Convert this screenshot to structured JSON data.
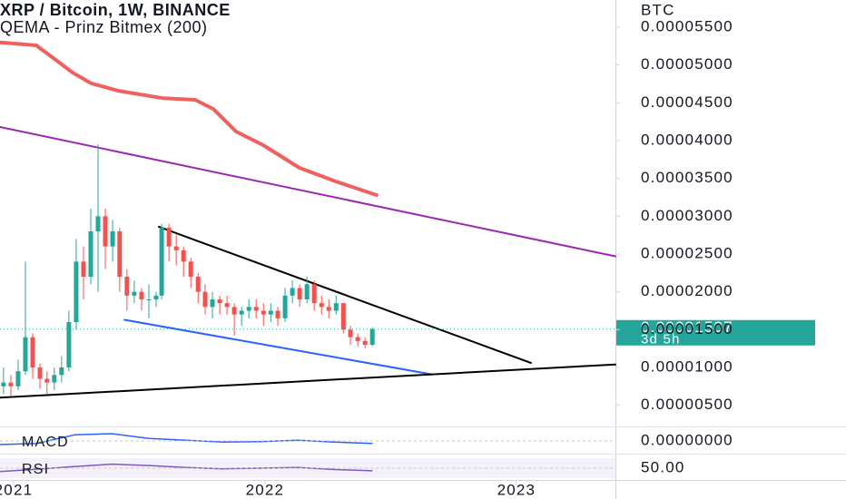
{
  "chart_data": {
    "type": "candlestick",
    "title": "XRP / Bitcoin, 1W, BINANCE",
    "subtitle": "QEMA - Prinz Bitmex (200)",
    "y_axis_label": "BTC",
    "up_color": "#26a69a",
    "down_color": "#ef5350",
    "x": [
      2020.96,
      2020.989,
      2021.018,
      2021.047,
      2021.076,
      2021.105,
      2021.133,
      2021.162,
      2021.191,
      2021.22,
      2021.249,
      2021.278,
      2021.307,
      2021.336,
      2021.365,
      2021.394,
      2021.422,
      2021.451,
      2021.48,
      2021.509,
      2021.538,
      2021.567,
      2021.589,
      2021.618,
      2021.647,
      2021.676,
      2021.705,
      2021.734,
      2021.762,
      2021.791,
      2021.82,
      2021.849,
      2021.878,
      2021.907,
      2021.936,
      2021.965,
      2021.994,
      2022.023,
      2022.051,
      2022.08,
      2022.109,
      2022.138,
      2022.167,
      2022.196,
      2022.225,
      2022.254,
      2022.283,
      2022.312,
      2022.34,
      2022.369,
      2022.398,
      2022.427
    ],
    "open": [
      7.5e-06,
      8e-06,
      7.5e-06,
      9.5e-06,
      1.4e-05,
      1e-05,
      8.5e-06,
      8e-06,
      9e-06,
      1e-05,
      1.6e-05,
      2.4e-05,
      2.2e-05,
      2.8e-05,
      3e-05,
      2.6e-05,
      2.8e-05,
      2.2e-05,
      1.95e-05,
      2e-05,
      1.9e-05,
      1.9e-05,
      1.95e-05,
      2.85e-05,
      2.6e-05,
      2.55e-05,
      2.4e-05,
      2.2e-05,
      2e-05,
      1.8e-05,
      1.9e-05,
      1.85e-05,
      1.8e-05,
      1.7e-05,
      1.75e-05,
      1.8e-05,
      1.75e-05,
      1.7e-05,
      1.75e-05,
      1.65e-05,
      1.95e-05,
      2.05e-05,
      1.9e-05,
      2.1e-05,
      1.85e-05,
      1.8e-05,
      1.75e-05,
      1.85e-05,
      1.5e-05,
      1.4e-05,
      1.35e-05,
      1.3e-05
    ],
    "high": [
      1e-05,
      9e-06,
      1.1e-05,
      2.4e-05,
      1.45e-05,
      1.05e-05,
      9.5e-06,
      1e-05,
      1.15e-05,
      1.75e-05,
      2.7e-05,
      2.6e-05,
      3.1e-05,
      3.95e-05,
      3.1e-05,
      2.95e-05,
      2.85e-05,
      2.3e-05,
      2.15e-05,
      2.05e-05,
      2.1e-05,
      2e-05,
      2.9e-05,
      2.9e-05,
      2.75e-05,
      2.6e-05,
      2.45e-05,
      2.25e-05,
      2.1e-05,
      2e-05,
      1.95e-05,
      1.95e-05,
      1.85e-05,
      1.8e-05,
      1.9e-05,
      1.9e-05,
      1.85e-05,
      1.85e-05,
      1.8e-05,
      2.05e-05,
      2.15e-05,
      2.1e-05,
      2.2e-05,
      2.15e-05,
      1.95e-05,
      1.9e-05,
      1.95e-05,
      1.85e-05,
      1.55e-05,
      1.45e-05,
      1.4e-05,
      1.53e-05
    ],
    "low": [
      6.5e-06,
      6.2e-06,
      7e-06,
      9e-06,
      8.5e-06,
      7.2e-06,
      6.5e-06,
      7e-06,
      8e-06,
      9.5e-06,
      1.5e-05,
      1.9e-05,
      2.1e-05,
      2e-05,
      2.3e-05,
      2.4e-05,
      2e-05,
      1.75e-05,
      1.85e-05,
      1.75e-05,
      1.65e-05,
      1.8e-05,
      1.9e-05,
      2.4e-05,
      2.35e-05,
      2.2e-05,
      2.05e-05,
      1.85e-05,
      1.7e-05,
      1.65e-05,
      1.7e-05,
      1.7e-05,
      1.42e-05,
      1.55e-05,
      1.65e-05,
      1.65e-05,
      1.55e-05,
      1.6e-05,
      1.55e-05,
      1.6e-05,
      1.85e-05,
      1.8e-05,
      1.85e-05,
      1.75e-05,
      1.7e-05,
      1.65e-05,
      1.7e-05,
      1.45e-05,
      1.3e-05,
      1.28e-05,
      1.25e-05,
      1.28e-05
    ],
    "close": [
      8e-06,
      7.5e-06,
      9.5e-06,
      1.4e-05,
      1e-05,
      8.5e-06,
      8e-06,
      9e-06,
      1e-05,
      1.6e-05,
      2.4e-05,
      2.2e-05,
      2.8e-05,
      3e-05,
      2.6e-05,
      2.8e-05,
      2.2e-05,
      1.95e-05,
      2e-05,
      1.9e-05,
      1.9e-05,
      1.95e-05,
      2.85e-05,
      2.6e-05,
      2.55e-05,
      2.4e-05,
      2.2e-05,
      2e-05,
      1.8e-05,
      1.9e-05,
      1.85e-05,
      1.8e-05,
      1.7e-05,
      1.75e-05,
      1.8e-05,
      1.75e-05,
      1.7e-05,
      1.75e-05,
      1.65e-05,
      1.95e-05,
      2.05e-05,
      1.9e-05,
      2.1e-05,
      1.85e-05,
      1.8e-05,
      1.75e-05,
      1.85e-05,
      1.5e-05,
      1.4e-05,
      1.35e-05,
      1.3e-05,
      1.507e-05
    ],
    "indicator": {
      "color": "#f0605d",
      "x": [
        2020.946,
        2021.09,
        2021.163,
        2021.235,
        2021.307,
        2021.415,
        2021.596,
        2021.722,
        2021.794,
        2021.885,
        2021.993,
        2022.137,
        2022.282,
        2022.444
      ],
      "values": [
        5.3e-05,
        5.26e-05,
        5.08e-05,
        4.9e-05,
        4.76e-05,
        4.66e-05,
        4.56e-05,
        4.54e-05,
        4.42e-05,
        4.12e-05,
        3.94e-05,
        3.64e-05,
        3.46e-05,
        3.28e-05
      ]
    },
    "trendlines": [
      {
        "color": "#9c27b0",
        "x": [
          2020.946,
          2023.394
        ],
        "values": [
          4.18e-05,
          2.47e-05
        ]
      },
      {
        "color": "#000000",
        "x": [
          2021.578,
          2023.058
        ],
        "values": [
          2.86e-05,
          1.06e-05
        ]
      },
      {
        "color": "#2962ff",
        "x": [
          2021.441,
          2022.661
        ],
        "values": [
          1.63e-05,
          9.1e-06
        ]
      },
      {
        "color": "#000000",
        "x": [
          2020.946,
          2023.394
        ],
        "values": [
          6e-06,
          1.04e-05
        ]
      }
    ],
    "last_price": {
      "value": 1.507e-05,
      "label": "0.00001507"
    },
    "countdown": "3d 5h",
    "price_tag_color": "#26a69a",
    "xlim": [
      2020.946,
      2023.394
    ],
    "xticks": [
      2021,
      2022,
      2023
    ],
    "ylim": [
      2.2e-06,
      5.86e-05
    ],
    "yticks": [
      {
        "value": 5.5e-05,
        "label": "0.00005500"
      },
      {
        "value": 5e-05,
        "label": "0.00005000"
      },
      {
        "value": 4.5e-05,
        "label": "0.00004500"
      },
      {
        "value": 4e-05,
        "label": "0.00004000"
      },
      {
        "value": 3.5e-05,
        "label": "0.00003500"
      },
      {
        "value": 3e-05,
        "label": "0.00003000"
      },
      {
        "value": 2.5e-05,
        "label": "0.00002500"
      },
      {
        "value": 2e-05,
        "label": "0.00002000"
      },
      {
        "value": 1.5e-05,
        "label": "0.00001500"
      },
      {
        "value": 1e-05,
        "label": "0.00001000"
      },
      {
        "value": 5e-06,
        "label": "0.00000500"
      }
    ],
    "panes": [
      {
        "name": "MACD",
        "color": "#2962ff",
        "x": [
          2020.946,
          2021.094,
          2021.242,
          2021.39,
          2021.538,
          2021.686,
          2021.834,
          2021.982,
          2022.13,
          2022.278,
          2022.426
        ],
        "values": [
          -6e-07,
          -4e-07,
          1e-06,
          1.2e-06,
          4e-07,
          1e-07,
          -2e-07,
          -1e-07,
          1e-07,
          -2e-07,
          -4e-07
        ],
        "ylim": [
          -1.5e-06,
          1.5e-06
        ],
        "yticks": [
          {
            "value": 0,
            "label": "0.00000000"
          }
        ]
      },
      {
        "name": "RSI",
        "color": "#7e57c2",
        "x": [
          2020.946,
          2021.094,
          2021.242,
          2021.39,
          2021.538,
          2021.686,
          2021.834,
          2021.982,
          2022.13,
          2022.278,
          2022.426
        ],
        "values": [
          40,
          47,
          55,
          62,
          58,
          52,
          48,
          50,
          52,
          46,
          42
        ],
        "ylim": [
          20,
          80
        ],
        "yticks": [
          {
            "value": 50,
            "label": "50.00"
          }
        ]
      }
    ]
  }
}
